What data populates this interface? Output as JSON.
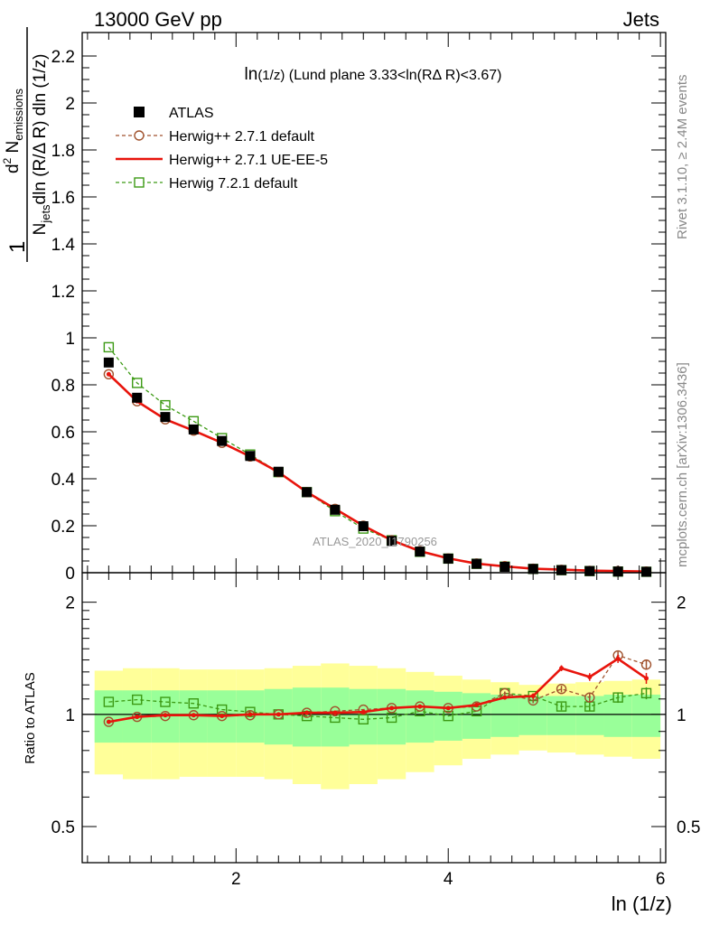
{
  "header": {
    "left": "13000 GeV pp",
    "right": "Jets"
  },
  "side_labels": {
    "rivet": "Rivet 3.1.10, ≥ 2.4M events",
    "mcplots": "mcplots.cern.ch [arXiv:1306.3436]"
  },
  "watermark": "ATLAS_2020_I1790256",
  "colors": {
    "atlas": "#000000",
    "herwigpp_default": "#a0522d",
    "herwigpp_ueee5": "#e8140c",
    "herwig721": "#3c9a14",
    "band_yellow": "#ffff99",
    "band_green": "#99ff99"
  },
  "chart_data": [
    {
      "type": "line",
      "title_main": "ln",
      "title_sub": "(1/z)",
      "title_rest": " (Lund plane 3.33<ln(RΔ R)<3.67)",
      "ylabel_frac_num": "1",
      "ylabel_frac_den_a": "N",
      "ylabel_frac_den_sub": "jets",
      "ylabel_frac_den_b": "dln (R/Δ R) dln (1/z)",
      "ylabel_num_a": "d",
      "ylabel_num_sup": "2",
      "ylabel_num_b": " N",
      "ylabel_num_sub": "emissions",
      "xlim": [
        0.55,
        6.05
      ],
      "ylim": [
        0,
        2.3
      ],
      "yticks": [
        0,
        0.2,
        0.4,
        0.6,
        0.8,
        1,
        1.2,
        1.4,
        1.6,
        1.8,
        2,
        2.2
      ],
      "ytick_labels": [
        "0",
        "0.2",
        "0.4",
        "0.6",
        "0.8",
        "1",
        "1.2",
        "1.4",
        "1.6",
        "1.8",
        "2",
        "2.2"
      ],
      "legend_position": "top-left",
      "bins": [
        0.667,
        0.933,
        1.2,
        1.467,
        1.733,
        2.0,
        2.267,
        2.533,
        2.8,
        3.067,
        3.333,
        3.6,
        3.867,
        4.133,
        4.4,
        4.667,
        4.933,
        5.2,
        5.467,
        5.733,
        6.0
      ],
      "x": [
        0.8,
        1.067,
        1.333,
        1.6,
        1.867,
        2.133,
        2.4,
        2.667,
        2.933,
        3.2,
        3.467,
        3.733,
        4.0,
        4.267,
        4.533,
        4.8,
        5.067,
        5.333,
        5.6,
        5.867
      ],
      "series": [
        {
          "name": "ATLAS",
          "key": "atlas",
          "style": "data",
          "values": [
            0.895,
            0.745,
            0.663,
            0.61,
            0.561,
            0.497,
            0.43,
            0.343,
            0.268,
            0.198,
            0.135,
            0.09,
            0.06,
            0.038,
            0.025,
            0.016,
            0.011,
            0.007,
            0.005,
            0.004
          ]
        },
        {
          "name": "Herwig++ 2.7.1 default",
          "key": "herwigpp_default",
          "style": "dashed-circle",
          "values": [
            0.845,
            0.73,
            0.653,
            0.605,
            0.553,
            0.495,
            0.428,
            0.343,
            0.272,
            0.2,
            0.138,
            0.092,
            0.061,
            0.039,
            0.028,
            0.017,
            0.012,
            0.008,
            0.007,
            0.005
          ]
        },
        {
          "name": "Herwig++ 2.7.1 UE-EE-5",
          "key": "herwigpp_ueee5",
          "style": "solid",
          "values": [
            0.845,
            0.73,
            0.653,
            0.605,
            0.553,
            0.495,
            0.428,
            0.343,
            0.272,
            0.2,
            0.138,
            0.092,
            0.061,
            0.039,
            0.027,
            0.017,
            0.013,
            0.009,
            0.007,
            0.005
          ]
        },
        {
          "name": "Herwig 7.2.1 default",
          "key": "herwig721",
          "style": "dashed-square",
          "values": [
            0.96,
            0.808,
            0.713,
            0.645,
            0.573,
            0.503,
            0.428,
            0.343,
            0.262,
            0.188,
            0.138,
            0.089,
            0.06,
            0.038,
            0.026,
            0.016,
            0.011,
            0.007,
            0.005,
            0.004
          ]
        }
      ]
    },
    {
      "type": "line",
      "ylabel": "Ratio to ATLAS",
      "xlabel": "ln (1/z)",
      "xlim": [
        0.55,
        6.05
      ],
      "ylim": [
        0.4,
        2.4
      ],
      "log_y": true,
      "xticks": [
        2,
        4,
        6
      ],
      "xtick_labels": [
        "2",
        "4",
        "6"
      ],
      "yticks": [
        0.5,
        1,
        2
      ],
      "ytick_labels": [
        "0.5",
        "1",
        "2"
      ],
      "band_green_half": [
        0.16,
        0.16,
        0.16,
        0.16,
        0.16,
        0.16,
        0.17,
        0.18,
        0.18,
        0.17,
        0.17,
        0.16,
        0.15,
        0.14,
        0.13,
        0.12,
        0.12,
        0.12,
        0.13,
        0.13
      ],
      "band_yellow_half": [
        0.31,
        0.33,
        0.33,
        0.32,
        0.32,
        0.32,
        0.33,
        0.35,
        0.37,
        0.35,
        0.33,
        0.3,
        0.27,
        0.24,
        0.22,
        0.2,
        0.21,
        0.22,
        0.23,
        0.24
      ],
      "series": [
        {
          "name": "Herwig++ 2.7.1 default",
          "key": "herwigpp_default",
          "style": "dashed-circle",
          "values": [
            0.955,
            0.985,
            0.99,
            0.995,
            0.99,
            0.995,
            1.0,
            1.01,
            1.02,
            1.03,
            1.04,
            1.05,
            1.04,
            1.05,
            1.14,
            1.09,
            1.17,
            1.11,
            1.44,
            1.36
          ]
        },
        {
          "name": "Herwig++ 2.7.1 UE-EE-5",
          "key": "herwigpp_ueee5",
          "style": "solid",
          "values": [
            0.955,
            0.985,
            0.995,
            0.995,
            0.99,
            1.0,
            1.0,
            1.01,
            1.01,
            1.015,
            1.04,
            1.05,
            1.04,
            1.06,
            1.11,
            1.12,
            1.33,
            1.26,
            1.41,
            1.25
          ]
        },
        {
          "name": "Herwig 7.2.1 default",
          "key": "herwig721",
          "style": "dashed-square",
          "values": [
            1.08,
            1.095,
            1.08,
            1.07,
            1.03,
            1.015,
            1.0,
            0.99,
            0.98,
            0.97,
            0.98,
            1.02,
            0.99,
            1.02,
            1.14,
            1.12,
            1.05,
            1.05,
            1.11,
            1.14
          ]
        }
      ]
    }
  ]
}
